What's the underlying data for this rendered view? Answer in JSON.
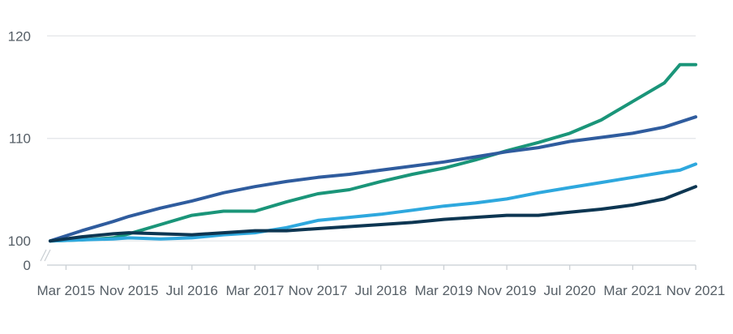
{
  "chart_data": {
    "type": "line",
    "title": "",
    "xlabel": "",
    "ylabel": "",
    "y_axis_break": true,
    "y_ticks": [
      {
        "value": 0,
        "label": "0"
      },
      {
        "value": 100,
        "label": "100"
      },
      {
        "value": 110,
        "label": "110"
      },
      {
        "value": 120,
        "label": "120"
      }
    ],
    "ylim": [
      99.7,
      123.5
    ],
    "x_range": [
      "2015-01",
      "2021-11"
    ],
    "x_ticks": [
      {
        "date": "2015-03",
        "label": "Mar 2015"
      },
      {
        "date": "2015-11",
        "label": "Nov 2015"
      },
      {
        "date": "2016-07",
        "label": "Jul 2016"
      },
      {
        "date": "2017-03",
        "label": "Mar 2017"
      },
      {
        "date": "2017-11",
        "label": "Nov 2017"
      },
      {
        "date": "2018-07",
        "label": "Jul 2018"
      },
      {
        "date": "2019-03",
        "label": "Mar 2019"
      },
      {
        "date": "2019-11",
        "label": "Nov 2019"
      },
      {
        "date": "2020-07",
        "label": "Jul 2020"
      },
      {
        "date": "2021-03",
        "label": "Mar 2021"
      },
      {
        "date": "2021-11",
        "label": "Nov 2021"
      }
    ],
    "grid": true,
    "legend": "none",
    "series": [
      {
        "color": "#1a9579",
        "points": [
          [
            "2015-01",
            100.0
          ],
          [
            "2015-05",
            100.1
          ],
          [
            "2015-09",
            100.3
          ],
          [
            "2015-11",
            100.7
          ],
          [
            "2016-03",
            101.6
          ],
          [
            "2016-07",
            102.5
          ],
          [
            "2016-11",
            102.9
          ],
          [
            "2017-03",
            102.9
          ],
          [
            "2017-07",
            103.8
          ],
          [
            "2017-11",
            104.6
          ],
          [
            "2018-03",
            105.0
          ],
          [
            "2018-07",
            105.8
          ],
          [
            "2018-11",
            106.5
          ],
          [
            "2019-03",
            107.1
          ],
          [
            "2019-07",
            107.9
          ],
          [
            "2019-11",
            108.8
          ],
          [
            "2020-03",
            109.6
          ],
          [
            "2020-07",
            110.5
          ],
          [
            "2020-11",
            111.8
          ],
          [
            "2021-03",
            113.6
          ],
          [
            "2021-07",
            115.4
          ],
          [
            "2021-09",
            117.2
          ],
          [
            "2021-11",
            117.2
          ]
        ]
      },
      {
        "color": "#2f5c9e",
        "points": [
          [
            "2015-01",
            100.0
          ],
          [
            "2015-05",
            101.0
          ],
          [
            "2015-09",
            101.9
          ],
          [
            "2015-11",
            102.4
          ],
          [
            "2016-03",
            103.2
          ],
          [
            "2016-07",
            103.9
          ],
          [
            "2016-11",
            104.7
          ],
          [
            "2017-03",
            105.3
          ],
          [
            "2017-07",
            105.8
          ],
          [
            "2017-11",
            106.2
          ],
          [
            "2018-03",
            106.5
          ],
          [
            "2018-07",
            106.9
          ],
          [
            "2018-11",
            107.3
          ],
          [
            "2019-03",
            107.7
          ],
          [
            "2019-07",
            108.2
          ],
          [
            "2019-11",
            108.7
          ],
          [
            "2020-03",
            109.1
          ],
          [
            "2020-07",
            109.7
          ],
          [
            "2020-11",
            110.1
          ],
          [
            "2021-03",
            110.5
          ],
          [
            "2021-07",
            111.1
          ],
          [
            "2021-11",
            112.1
          ]
        ]
      },
      {
        "color": "#2ea8de",
        "points": [
          [
            "2015-01",
            100.0
          ],
          [
            "2015-05",
            100.1
          ],
          [
            "2015-09",
            100.2
          ],
          [
            "2015-11",
            100.3
          ],
          [
            "2016-03",
            100.2
          ],
          [
            "2016-07",
            100.3
          ],
          [
            "2016-11",
            100.6
          ],
          [
            "2017-03",
            100.8
          ],
          [
            "2017-07",
            101.3
          ],
          [
            "2017-11",
            102.0
          ],
          [
            "2018-03",
            102.3
          ],
          [
            "2018-07",
            102.6
          ],
          [
            "2018-11",
            103.0
          ],
          [
            "2019-03",
            103.4
          ],
          [
            "2019-07",
            103.7
          ],
          [
            "2019-11",
            104.1
          ],
          [
            "2020-03",
            104.7
          ],
          [
            "2020-07",
            105.2
          ],
          [
            "2020-11",
            105.7
          ],
          [
            "2021-03",
            106.2
          ],
          [
            "2021-07",
            106.7
          ],
          [
            "2021-09",
            106.9
          ],
          [
            "2021-11",
            107.5
          ]
        ]
      },
      {
        "color": "#0d3652",
        "points": [
          [
            "2015-01",
            100.0
          ],
          [
            "2015-05",
            100.4
          ],
          [
            "2015-09",
            100.7
          ],
          [
            "2015-11",
            100.8
          ],
          [
            "2016-03",
            100.7
          ],
          [
            "2016-07",
            100.6
          ],
          [
            "2016-11",
            100.8
          ],
          [
            "2017-03",
            101.0
          ],
          [
            "2017-07",
            101.0
          ],
          [
            "2017-11",
            101.2
          ],
          [
            "2018-03",
            101.4
          ],
          [
            "2018-07",
            101.6
          ],
          [
            "2018-11",
            101.8
          ],
          [
            "2019-03",
            102.1
          ],
          [
            "2019-07",
            102.3
          ],
          [
            "2019-11",
            102.5
          ],
          [
            "2020-03",
            102.5
          ],
          [
            "2020-07",
            102.8
          ],
          [
            "2020-11",
            103.1
          ],
          [
            "2021-03",
            103.5
          ],
          [
            "2021-07",
            104.1
          ],
          [
            "2021-11",
            105.3
          ]
        ]
      }
    ]
  }
}
